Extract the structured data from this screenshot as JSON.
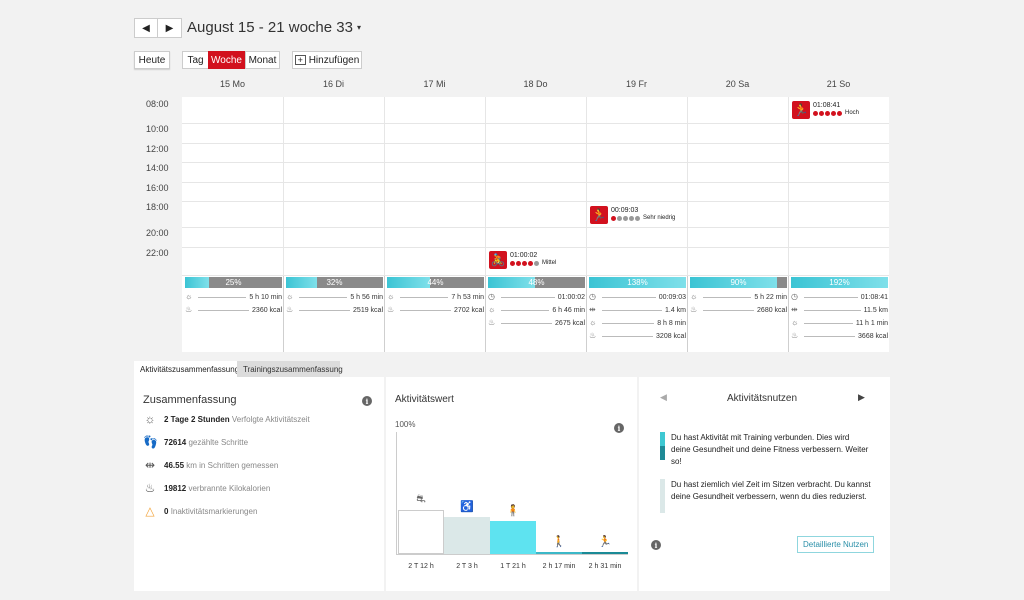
{
  "header": {
    "prev_icon": "◀",
    "next_icon": "▶",
    "week_label": "August 15 - 21 woche 33",
    "week_caret": "▾"
  },
  "toolbar": {
    "today": "Heute",
    "view_day": "Tag",
    "view_week": "Woche",
    "view_month": "Monat",
    "add_label": "Hinzufügen",
    "active_view": "Woche"
  },
  "days": [
    "15 Mo",
    "16 Di",
    "17 Mi",
    "18 Do",
    "19 Fr",
    "20 Sa",
    "21 So"
  ],
  "times": [
    "08:00",
    "10:00",
    "12:00",
    "14:00",
    "16:00",
    "18:00",
    "20:00",
    "22:00"
  ],
  "events": [
    {
      "day": "21 So",
      "icon": "running-icon",
      "glyph": "🏃",
      "time": "01:08:41",
      "level": "Hoch",
      "red_dots": 5
    },
    {
      "day": "19 Fr",
      "icon": "running-icon",
      "glyph": "🏃",
      "time": "00:09:03",
      "level": "Sehr niedrig",
      "red_dots": 1
    },
    {
      "day": "18 Do",
      "icon": "cycling-icon",
      "glyph": "🚴",
      "time": "01:00:02",
      "level": "Mittel",
      "red_dots": 4
    }
  ],
  "summaries": [
    {
      "pct_label": "25%",
      "pct": 0.25,
      "rows": [
        [
          "activity-time-icon",
          "5 h 10 min"
        ],
        [
          "calories-icon",
          "2360 kcal"
        ]
      ]
    },
    {
      "pct_label": "32%",
      "pct": 0.32,
      "rows": [
        [
          "activity-time-icon",
          "5 h 56 min"
        ],
        [
          "calories-icon",
          "2519 kcal"
        ]
      ]
    },
    {
      "pct_label": "44%",
      "pct": 0.44,
      "rows": [
        [
          "activity-time-icon",
          "7 h 53 min"
        ],
        [
          "calories-icon",
          "2702 kcal"
        ]
      ]
    },
    {
      "pct_label": "48%",
      "pct": 0.48,
      "rows": [
        [
          "training-time-icon",
          "01:00:02"
        ],
        [
          "activity-time-icon",
          "6 h 46 min"
        ],
        [
          "calories-icon",
          "2675 kcal"
        ]
      ]
    },
    {
      "pct_label": "138%",
      "pct": 1.0,
      "rows": [
        [
          "training-time-icon",
          "00:09:03"
        ],
        [
          "distance-icon",
          "1.4 km"
        ],
        [
          "activity-time-icon",
          "8 h 8 min"
        ],
        [
          "calories-icon",
          "3208 kcal"
        ]
      ]
    },
    {
      "pct_label": "90%",
      "pct": 0.9,
      "rows": [
        [
          "activity-time-icon",
          "5 h 22 min"
        ],
        [
          "calories-icon",
          "2680 kcal"
        ]
      ]
    },
    {
      "pct_label": "192%",
      "pct": 1.0,
      "rows": [
        [
          "training-time-icon",
          "01:08:41"
        ],
        [
          "distance-icon",
          "11.5 km"
        ],
        [
          "activity-time-icon",
          "11 h 1 min"
        ],
        [
          "calories-icon",
          "3668 kcal"
        ]
      ]
    }
  ],
  "tabs": {
    "activity": "Aktivitätszusammenfassung",
    "training": "Trainingszusammenfassung"
  },
  "zusammenfassung": {
    "title": "Zusammenfassung",
    "rows": [
      {
        "icon": "activity-time-icon",
        "value": "2 Tage 2 Stunden",
        "text": "Verfolgte Aktivitätszeit"
      },
      {
        "icon": "steps-icon",
        "value": "72614",
        "text": "gezählte Schritte"
      },
      {
        "icon": "distance-icon",
        "value": "46.55",
        "text": "km in Schritten gemessen"
      },
      {
        "icon": "calories-icon",
        "value": "19812",
        "text": "verbrannte Kilokalorien"
      },
      {
        "icon": "inactivity-icon",
        "value": "0",
        "text": "Inaktivitätsmarkierungen"
      }
    ]
  },
  "aktivitaetswert": {
    "title": "Aktivitätswert",
    "top_label": "100%",
    "bars": [
      {
        "label": "2 T 12 h",
        "icon": "lying-icon",
        "level": 0.36,
        "color": "#ffffff"
      },
      {
        "label": "2 T 3 h",
        "icon": "sitting-icon",
        "level": 0.3,
        "color": "#dbe8e8"
      },
      {
        "label": "1 T 21 h",
        "icon": "standing-icon",
        "level": 0.27,
        "color": "#5ee3f0"
      },
      {
        "label": "2 h 17 min",
        "icon": "walking-icon",
        "level": 0.02,
        "color": "#3bb8c8"
      },
      {
        "label": "2 h 31 min",
        "icon": "running-icon",
        "level": 0.02,
        "color": "#1a8a96"
      }
    ]
  },
  "nutzen": {
    "title": "Aktivitätsnutzen",
    "items": [
      {
        "text": "Du hast Aktivität mit Training verbunden. Dies wird deine Gesundheit und deine Fitness verbessern. Weiter so!",
        "colors": [
          "#3ec8d2",
          "#1f8a96"
        ]
      },
      {
        "text": "Du hast ziemlich viel Zeit im Sitzen verbracht. Du kannst deine Gesundheit verbessern, wenn du dies reduzierst.",
        "colors": [
          "#dbe8e8"
        ]
      }
    ],
    "detail_button": "Detaillierte Nutzen"
  },
  "colors": {
    "accent_red": "#d2111e",
    "teal": "#3bc4d4"
  }
}
